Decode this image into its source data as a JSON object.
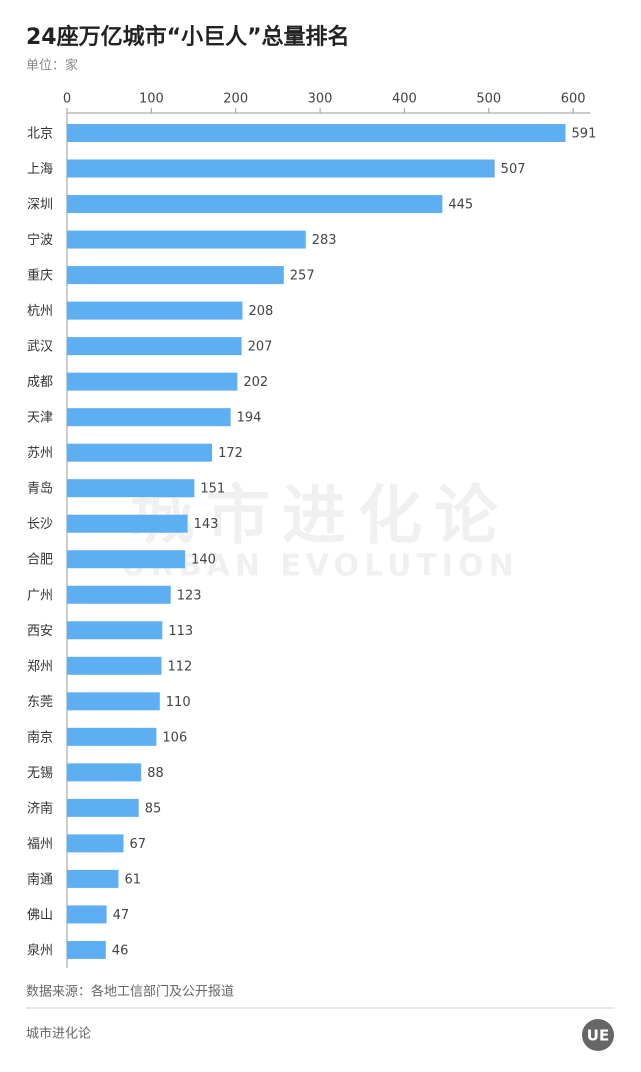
{
  "chart_data": {
    "type": "bar",
    "orientation": "horizontal",
    "title": "24座万亿城市“小巨人”总量排名",
    "subtitle": "单位：家",
    "categories": [
      "北京",
      "上海",
      "深圳",
      "宁波",
      "重庆",
      "杭州",
      "武汉",
      "成都",
      "天津",
      "苏州",
      "青岛",
      "长沙",
      "合肥",
      "广州",
      "西安",
      "郑州",
      "东莞",
      "南京",
      "无锡",
      "济南",
      "福州",
      "南通",
      "佛山",
      "泉州"
    ],
    "values": [
      591,
      507,
      445,
      283,
      257,
      208,
      207,
      202,
      194,
      172,
      151,
      143,
      140,
      123,
      113,
      112,
      110,
      106,
      88,
      85,
      67,
      61,
      47,
      46
    ],
    "color": "#5eaff2",
    "xlim": [
      0,
      620
    ],
    "xticks": [
      0,
      100,
      200,
      300,
      400,
      500,
      600
    ],
    "source": "数据来源：各地工信部门及公开报道"
  },
  "watermark": {
    "line1": "城市进化论",
    "line2": "URBAN EVOLUTION"
  },
  "footer": {
    "brand": "城市进化论",
    "logo": "UE"
  }
}
